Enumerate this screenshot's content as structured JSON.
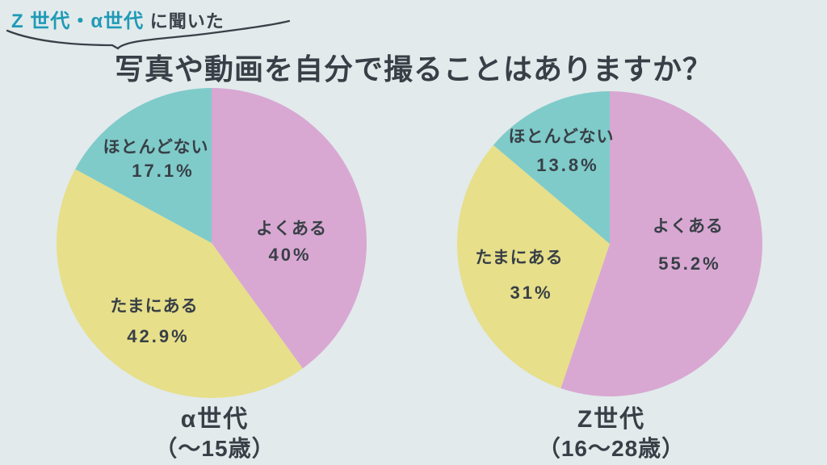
{
  "page": {
    "background": "#e2eaec",
    "text_color": "#383f46",
    "badge": {
      "highlight": "Z 世代・α世代",
      "highlight_color": "#1f9ab6",
      "rest": "に聞いた"
    },
    "title": "写真や動画を自分で撮ることはありますか？"
  },
  "chart_data": [
    {
      "type": "pie",
      "title": "α世代",
      "subtitle": "（～15歳）",
      "labels": [
        "よくある",
        "たまにある",
        "ほとんどない"
      ],
      "values": [
        40,
        42.9,
        17.1
      ],
      "display_values": [
        "40%",
        "42.9%",
        "17.1%"
      ],
      "colors": [
        "#d8a8d2",
        "#e7df8a",
        "#7fcbca"
      ],
      "start_angle_deg": 0,
      "direction": "clockwise",
      "legend_position": "inside"
    },
    {
      "type": "pie",
      "title": "Z世代",
      "subtitle": "（16～28歳）",
      "labels": [
        "よくある",
        "たまにある",
        "ほとんどない"
      ],
      "values": [
        55.2,
        31,
        13.8
      ],
      "display_values": [
        "55.2%",
        "31%",
        "13.8%"
      ],
      "colors": [
        "#d8a8d2",
        "#e7df8a",
        "#7fcbca"
      ],
      "start_angle_deg": 0,
      "direction": "clockwise",
      "legend_position": "inside"
    }
  ]
}
